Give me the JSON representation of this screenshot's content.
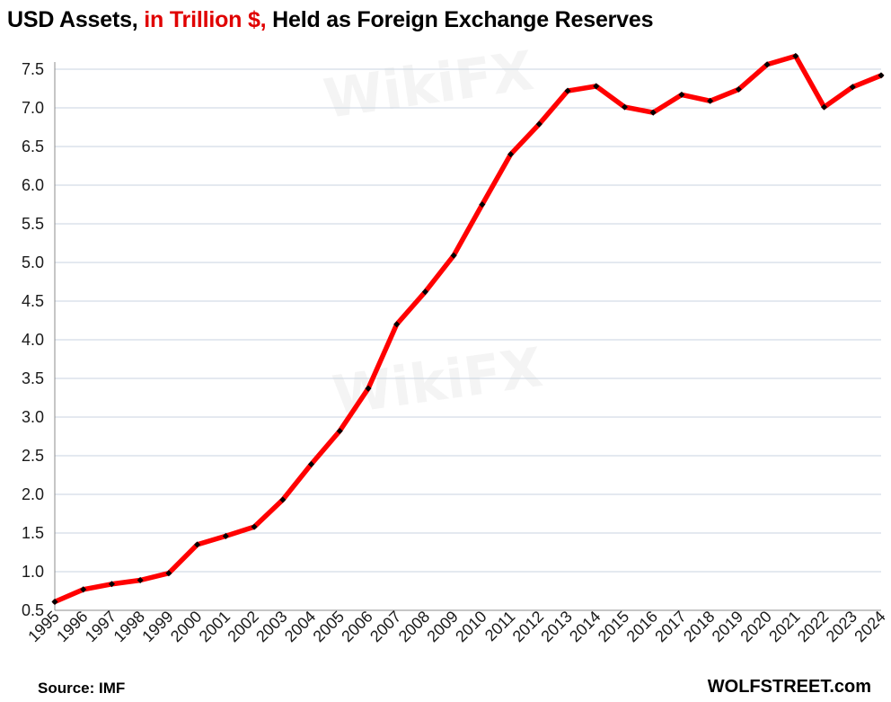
{
  "title": {
    "part1": "USD Assets, ",
    "part2": "in Trillion $,",
    "part3": " Held as Foreign Exchange Reserves",
    "highlight_color": "#e00000"
  },
  "footer": {
    "source": "Source: IMF",
    "brand": "WOLFSTREET.com"
  },
  "watermark": {
    "text": "WikiFX"
  },
  "chart_data": {
    "type": "line",
    "title": "USD Assets, in Trillion $, Held as Foreign Exchange Reserves",
    "xlabel": "",
    "ylabel": "",
    "ylim": [
      0.5,
      7.5
    ],
    "ytick_step": 0.5,
    "grid": true,
    "line_color": "#ff0000",
    "marker_color": "#000000",
    "x": [
      "1995",
      "1996",
      "1997",
      "1998",
      "1999",
      "2000",
      "2001",
      "2002",
      "2003",
      "2004",
      "2005",
      "2006",
      "2007",
      "2008",
      "2009",
      "2010",
      "2011",
      "2012",
      "2013",
      "2014",
      "2015",
      "2016",
      "2017",
      "2018",
      "2019",
      "2020",
      "2021",
      "2022",
      "2023",
      "2024"
    ],
    "series": [
      {
        "name": "USD Assets (Trillion $)",
        "values": [
          0.61,
          0.77,
          0.84,
          0.89,
          0.98,
          1.35,
          1.46,
          1.58,
          1.93,
          2.39,
          2.82,
          3.37,
          4.2,
          4.62,
          5.09,
          5.75,
          6.4,
          6.79,
          7.22,
          7.28,
          7.01,
          6.94,
          7.17,
          7.09,
          7.24,
          7.56,
          7.67,
          7.01,
          7.27,
          7.42
        ]
      }
    ]
  }
}
